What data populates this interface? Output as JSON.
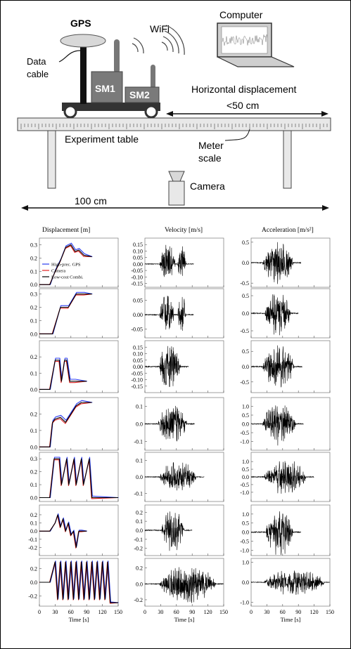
{
  "diagram": {
    "gps": "GPS",
    "wifi": "WiFi",
    "computer": "Computer",
    "data_cable": [
      "Data",
      "cable"
    ],
    "sm1": "SM1",
    "sm2": "SM2",
    "horizontal_displacement": "Horizontal displacement",
    "range_short": "<50 cm",
    "experiment_table": "Experiment table",
    "meter_scale": [
      "Meter",
      "scale"
    ],
    "camera": "Camera",
    "range_long": "100 cm"
  },
  "colors": {
    "gps": "#2a3cf0",
    "camera": "#e02020",
    "combi": "#000000",
    "device": "#808080",
    "table": "#e8e8e8"
  },
  "chart_data": {
    "type": "line",
    "column_titles": [
      "Displacement [m]",
      "Velocity [m/s]",
      "Acceleration [m/s²]"
    ],
    "xlabel": "Time [s]",
    "x_ticks": [
      "0",
      "30",
      "60",
      "90",
      "120",
      "150"
    ],
    "xlim": [
      0,
      150
    ],
    "legend": [
      "High-prec. GPS",
      "Camera",
      "Low-cost Combi."
    ],
    "rows": [
      {
        "displacement": {
          "ylim": [
            -0.02,
            0.35
          ],
          "ticks": [
            "0.0",
            "0.1",
            "0.2",
            "0.3"
          ],
          "x": [
            0,
            20,
            30,
            40,
            50,
            60,
            68,
            75,
            85,
            100
          ],
          "y": [
            0,
            0,
            0.1,
            0.18,
            0.28,
            0.3,
            0.25,
            0.26,
            0.22,
            0.21
          ]
        },
        "velocity": {
          "ylim": [
            -0.18,
            0.2
          ],
          "ticks": [
            "0.15",
            "0.10",
            "0.05",
            "0.00",
            "-0.05",
            "-0.10",
            "-0.15"
          ],
          "active": [
            [
              28,
              58
            ],
            [
              62,
              78
            ]
          ],
          "amp_pos": 0.17,
          "amp_neg": -0.12
        },
        "acceleration": {
          "ylim": [
            -0.6,
            0.6
          ],
          "ticks": [
            "0.5",
            "0.0",
            "-0.5"
          ],
          "active": [
            [
              22,
              80
            ]
          ],
          "amp": 0.55
        }
      },
      {
        "displacement": {
          "ylim": [
            -0.03,
            0.34
          ],
          "ticks": [
            "0.0",
            "0.1",
            "0.2",
            "0.3"
          ],
          "x": [
            0,
            25,
            40,
            47,
            55,
            70,
            85,
            100
          ],
          "y": [
            0,
            0,
            0.2,
            0.2,
            0.2,
            0.3,
            0.3,
            0.3
          ]
        },
        "velocity": {
          "ylim": [
            -0.08,
            0.09
          ],
          "ticks": [
            "0.05",
            "0.00",
            "-0.05"
          ],
          "active": [
            [
              28,
              56
            ],
            [
              62,
              78
            ]
          ],
          "amp_pos": 0.08,
          "amp_neg": -0.06
        },
        "acceleration": {
          "ylim": [
            -0.7,
            0.7
          ],
          "ticks": [
            "0.5",
            "0.0",
            "-0.5"
          ],
          "active": [
            [
              26,
              75
            ]
          ],
          "amp": 0.65
        }
      },
      {
        "displacement": {
          "ylim": [
            -0.02,
            0.3
          ],
          "ticks": [
            "0.0",
            "0.1",
            "0.2"
          ],
          "x": [
            0,
            20,
            30,
            38,
            42,
            48,
            52,
            58,
            68,
            90
          ],
          "y": [
            0,
            0,
            0.18,
            0.18,
            0.05,
            0.18,
            0.18,
            0.05,
            0.05,
            0.05
          ]
        },
        "velocity": {
          "ylim": [
            -0.2,
            0.2
          ],
          "ticks": [
            "0.15",
            "0.10",
            "0.05",
            "0.00",
            "-0.05",
            "-0.10",
            "-0.15"
          ],
          "active": [
            [
              26,
              68
            ]
          ],
          "amp_pos": 0.18,
          "amp_neg": -0.18
        },
        "acceleration": {
          "ylim": [
            -0.85,
            0.85
          ],
          "ticks": [
            "0.5",
            "0.0",
            "-0.5"
          ],
          "active": [
            [
              22,
              82
            ]
          ],
          "amp": 0.75
        }
      },
      {
        "displacement": {
          "ylim": [
            -0.02,
            0.3
          ],
          "ticks": [
            "0.0",
            "0.1",
            "0.2"
          ],
          "x": [
            0,
            20,
            25,
            30,
            40,
            50,
            60,
            70,
            80,
            100
          ],
          "y": [
            0,
            0,
            0.15,
            0.17,
            0.18,
            0.15,
            0.2,
            0.25,
            0.27,
            0.27
          ]
        },
        "velocity": {
          "ylim": [
            -0.15,
            0.15
          ],
          "ticks": [
            "0.1",
            "0.0",
            "-0.1"
          ],
          "active": [
            [
              25,
              80
            ]
          ],
          "amp_pos": 0.12,
          "amp_neg": -0.12
        },
        "acceleration": {
          "ylim": [
            -1.5,
            1.5
          ],
          "ticks": [
            "1.0",
            "0.5",
            "0.0",
            "-0.5",
            "-1.0"
          ],
          "active": [
            [
              22,
              85
            ]
          ],
          "amp": 1.3
        }
      },
      {
        "displacement": {
          "ylim": [
            -0.03,
            0.35
          ],
          "ticks": [
            "0.0",
            "0.1",
            "0.2",
            "0.3"
          ],
          "x": [
            0,
            20,
            28,
            38,
            42,
            52,
            56,
            66,
            70,
            80,
            84,
            95,
            100,
            150
          ],
          "y": [
            0,
            0,
            0.3,
            0.3,
            0.1,
            0.3,
            0.1,
            0.3,
            0.1,
            0.3,
            0.1,
            0.3,
            0,
            0
          ]
        },
        "velocity": {
          "ylim": [
            -0.15,
            0.15
          ],
          "ticks": [
            "0.1",
            "0.0",
            "-0.1"
          ],
          "active": [
            [
              28,
              98
            ]
          ],
          "amp_pos": 0.1,
          "amp_neg": -0.1
        },
        "acceleration": {
          "ylim": [
            -1.6,
            1.6
          ],
          "ticks": [
            "1.0",
            "0.5",
            "0.0",
            "-0.5",
            "-1.0"
          ],
          "active": [
            [
              25,
              105
            ]
          ],
          "amp": 1.2
        }
      },
      {
        "displacement": {
          "ylim": [
            -0.3,
            0.32
          ],
          "ticks": [
            "0.2",
            "0.1",
            "0.0",
            "-0.1",
            "-0.2"
          ],
          "x": [
            0,
            20,
            30,
            35,
            40,
            45,
            50,
            55,
            60,
            65,
            70,
            75,
            80,
            90
          ],
          "y": [
            0,
            0,
            0.1,
            0.2,
            0.05,
            0.15,
            0,
            0.1,
            -0.05,
            0,
            -0.2,
            0,
            0,
            0
          ]
        },
        "velocity": {
          "ylim": [
            -0.28,
            0.28
          ],
          "ticks": [
            "0.2",
            "0.1",
            "0.0",
            "-0.1",
            "-0.2"
          ],
          "active": [
            [
              32,
              75
            ]
          ],
          "amp_pos": 0.25,
          "amp_neg": -0.25
        },
        "acceleration": {
          "ylim": [
            -1.3,
            1.5
          ],
          "ticks": [
            "1.0",
            "0.5",
            "0.0",
            "-0.5",
            "-1.0"
          ],
          "active": [
            [
              28,
              80
            ]
          ],
          "amp": 1.4
        }
      },
      {
        "displacement": {
          "ylim": [
            -0.35,
            0.35
          ],
          "ticks": [
            "0.2",
            "0.0",
            "-0.2"
          ],
          "x": [
            0,
            20,
            30,
            35,
            40,
            45,
            50,
            55,
            60,
            65,
            70,
            75,
            80,
            85,
            90,
            95,
            100,
            105,
            110,
            115,
            120,
            125,
            130,
            135,
            150
          ],
          "y": [
            0,
            0,
            0.3,
            -0.25,
            0.3,
            -0.25,
            0.3,
            -0.25,
            0.3,
            -0.25,
            0.3,
            -0.25,
            0.3,
            -0.25,
            0.3,
            -0.25,
            0.3,
            -0.25,
            0.3,
            -0.25,
            0.3,
            -0.25,
            0.3,
            -0.3,
            -0.3
          ]
        },
        "velocity": {
          "ylim": [
            -0.28,
            0.32
          ],
          "ticks": [
            "0.2",
            "0.0",
            "-0.2"
          ],
          "active": [
            [
              28,
              135
            ]
          ],
          "amp_pos": 0.25,
          "amp_neg": -0.25
        },
        "acceleration": {
          "ylim": [
            -1.2,
            1.2
          ],
          "ticks": [
            "1.0",
            "0.0",
            "-1.0"
          ],
          "active": [
            [
              25,
              140
            ]
          ],
          "amp": 0.7
        }
      }
    ]
  }
}
